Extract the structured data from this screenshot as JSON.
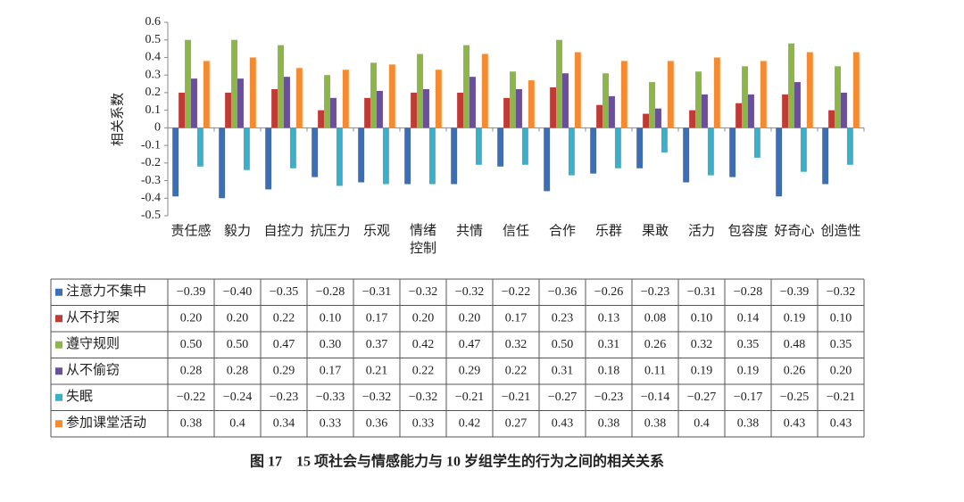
{
  "chart_data": {
    "type": "bar",
    "title": "图 17　15 项社会与情感能力与 10 岁组学生的行为之间的相关关系",
    "y_label": "相关系数",
    "categories": [
      "责任感",
      "毅力",
      "自控力",
      "抗压力",
      "乐观",
      "情绪控制",
      "共情",
      "信任",
      "合作",
      "乐群",
      "果敢",
      "活力",
      "包容度",
      "好奇心",
      "创造性"
    ],
    "ylim": [
      -0.5,
      0.6
    ],
    "yticks": [
      0.6,
      0.5,
      0.4,
      0.3,
      0.2,
      0.1,
      0,
      -0.1,
      -0.2,
      -0.3,
      -0.4,
      -0.5
    ],
    "series": [
      {
        "name": "注意力不集中",
        "color": "#3b6eb5",
        "values": [
          -0.39,
          -0.4,
          -0.35,
          -0.28,
          -0.31,
          -0.32,
          -0.32,
          -0.22,
          -0.36,
          -0.26,
          -0.23,
          -0.31,
          -0.28,
          -0.39,
          -0.32
        ],
        "value_labels": [
          "−0.39",
          "−0.40",
          "−0.35",
          "−0.28",
          "−0.31",
          "−0.32",
          "−0.32",
          "−0.22",
          "−0.36",
          "−0.26",
          "−0.23",
          "−0.31",
          "−0.28",
          "−0.39",
          "−0.32"
        ]
      },
      {
        "name": "从不打架",
        "color": "#bf3b35",
        "values": [
          0.2,
          0.2,
          0.22,
          0.1,
          0.17,
          0.2,
          0.2,
          0.17,
          0.23,
          0.13,
          0.08,
          0.1,
          0.14,
          0.19,
          0.1
        ],
        "value_labels": [
          "0.20",
          "0.20",
          "0.22",
          "0.10",
          "0.17",
          "0.20",
          "0.20",
          "0.17",
          "0.23",
          "0.13",
          "0.08",
          "0.10",
          "0.14",
          "0.19",
          "0.10"
        ]
      },
      {
        "name": "遵守规则",
        "color": "#8cb64a",
        "values": [
          0.5,
          0.5,
          0.47,
          0.3,
          0.37,
          0.42,
          0.47,
          0.32,
          0.5,
          0.31,
          0.26,
          0.32,
          0.35,
          0.48,
          0.35
        ],
        "value_labels": [
          "0.50",
          "0.50",
          "0.47",
          "0.30",
          "0.37",
          "0.42",
          "0.47",
          "0.32",
          "0.50",
          "0.31",
          "0.26",
          "0.32",
          "0.35",
          "0.48",
          "0.35"
        ]
      },
      {
        "name": "从不偷窃",
        "color": "#6a4f9b",
        "values": [
          0.28,
          0.28,
          0.29,
          0.17,
          0.21,
          0.22,
          0.29,
          0.22,
          0.31,
          0.18,
          0.11,
          0.19,
          0.19,
          0.26,
          0.2
        ],
        "value_labels": [
          "0.28",
          "0.28",
          "0.29",
          "0.17",
          "0.21",
          "0.22",
          "0.29",
          "0.22",
          "0.31",
          "0.18",
          "0.11",
          "0.19",
          "0.19",
          "0.26",
          "0.20"
        ]
      },
      {
        "name": "失眠",
        "color": "#3eafc8",
        "values": [
          -0.22,
          -0.24,
          -0.23,
          -0.33,
          -0.32,
          -0.32,
          -0.21,
          -0.21,
          -0.27,
          -0.23,
          -0.14,
          -0.27,
          -0.17,
          -0.25,
          -0.21
        ],
        "value_labels": [
          "−0.22",
          "−0.24",
          "−0.23",
          "−0.33",
          "−0.32",
          "−0.32",
          "−0.21",
          "−0.21",
          "−0.27",
          "−0.23",
          "−0.14",
          "−0.27",
          "−0.17",
          "−0.25",
          "−0.21"
        ]
      },
      {
        "name": "参加课堂活动",
        "color": "#f58a30",
        "values": [
          0.38,
          0.4,
          0.34,
          0.33,
          0.36,
          0.33,
          0.42,
          0.27,
          0.43,
          0.38,
          0.38,
          0.4,
          0.38,
          0.43,
          0.43
        ],
        "value_labels": [
          "0.38",
          "0.4",
          "0.34",
          "0.33",
          "0.36",
          "0.33",
          "0.42",
          "0.27",
          "0.43",
          "0.38",
          "0.38",
          "0.4",
          "0.38",
          "0.43",
          "0.43"
        ]
      }
    ]
  }
}
